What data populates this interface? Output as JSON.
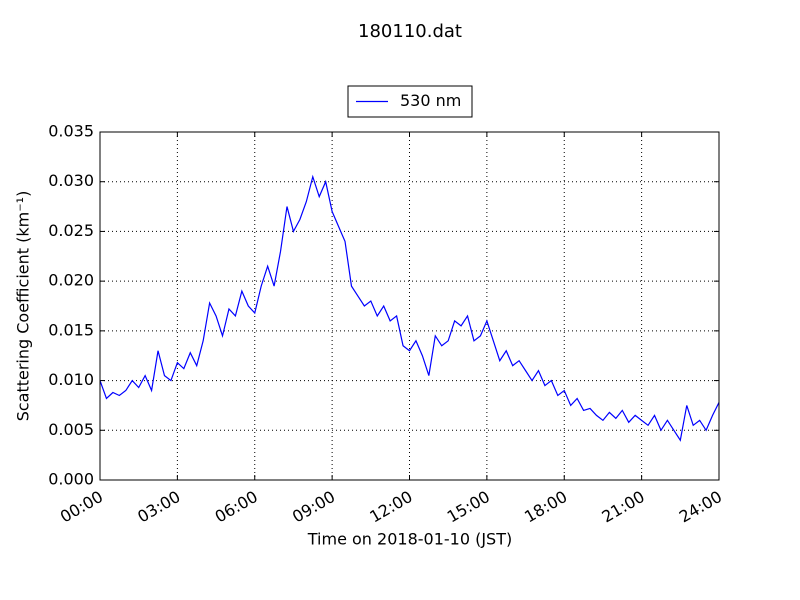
{
  "chart_data": {
    "type": "line",
    "title": "180110.dat",
    "xlabel": "Time on 2018-01-10 (JST)",
    "ylabel": "Scattering Coefficient (km⁻¹)",
    "x": [
      0,
      0.25,
      0.5,
      0.75,
      1,
      1.25,
      1.5,
      1.75,
      2,
      2.25,
      2.5,
      2.75,
      3,
      3.25,
      3.5,
      3.75,
      4,
      4.25,
      4.5,
      4.75,
      5,
      5.25,
      5.5,
      5.75,
      6,
      6.25,
      6.5,
      6.75,
      7,
      7.25,
      7.5,
      7.75,
      8,
      8.25,
      8.5,
      8.75,
      9,
      9.25,
      9.5,
      9.75,
      10,
      10.25,
      10.5,
      10.75,
      11,
      11.25,
      11.5,
      11.75,
      12,
      12.25,
      12.5,
      12.75,
      13,
      13.25,
      13.5,
      13.75,
      14,
      14.25,
      14.5,
      14.75,
      15,
      15.25,
      15.5,
      15.75,
      16,
      16.25,
      16.5,
      16.75,
      17,
      17.25,
      17.5,
      17.75,
      18,
      18.25,
      18.5,
      18.75,
      19,
      19.25,
      19.5,
      19.75,
      20,
      20.25,
      20.5,
      20.75,
      21,
      21.25,
      21.5,
      21.75,
      22,
      22.25,
      22.5,
      22.75,
      23,
      23.25,
      23.5,
      23.75,
      24
    ],
    "series": [
      {
        "name": "530 nm",
        "color": "#0000ff",
        "values": [
          0.01,
          0.0082,
          0.0088,
          0.0085,
          0.009,
          0.01,
          0.0093,
          0.0105,
          0.009,
          0.013,
          0.0105,
          0.01,
          0.0118,
          0.0112,
          0.0128,
          0.0115,
          0.014,
          0.0178,
          0.0165,
          0.0145,
          0.0172,
          0.0165,
          0.019,
          0.0175,
          0.0168,
          0.0195,
          0.0215,
          0.0195,
          0.023,
          0.0275,
          0.025,
          0.0262,
          0.028,
          0.0305,
          0.0285,
          0.03,
          0.027,
          0.0255,
          0.024,
          0.0195,
          0.0185,
          0.0175,
          0.018,
          0.0165,
          0.0175,
          0.016,
          0.0165,
          0.0135,
          0.013,
          0.014,
          0.0125,
          0.0105,
          0.0145,
          0.0135,
          0.014,
          0.016,
          0.0155,
          0.0165,
          0.014,
          0.0145,
          0.016,
          0.014,
          0.012,
          0.013,
          0.0115,
          0.012,
          0.011,
          0.01,
          0.011,
          0.0095,
          0.01,
          0.0085,
          0.009,
          0.0075,
          0.0082,
          0.007,
          0.0072,
          0.0065,
          0.006,
          0.0068,
          0.0062,
          0.007,
          0.0058,
          0.0065,
          0.006,
          0.0055,
          0.0065,
          0.005,
          0.006,
          0.005,
          0.004,
          0.0075,
          0.0055,
          0.006,
          0.005,
          0.0065,
          0.0078
        ]
      }
    ],
    "xlim": [
      0,
      24
    ],
    "xticks": [
      {
        "value": 0,
        "label": "00:00"
      },
      {
        "value": 3,
        "label": "03:00"
      },
      {
        "value": 6,
        "label": "06:00"
      },
      {
        "value": 9,
        "label": "09:00"
      },
      {
        "value": 12,
        "label": "12:00"
      },
      {
        "value": 15,
        "label": "15:00"
      },
      {
        "value": 18,
        "label": "18:00"
      },
      {
        "value": 21,
        "label": "21:00"
      },
      {
        "value": 24,
        "label": "24:00"
      }
    ],
    "ylim": [
      0,
      0.035
    ],
    "yticks": [
      {
        "value": 0,
        "label": "0.000"
      },
      {
        "value": 0.005,
        "label": "0.005"
      },
      {
        "value": 0.01,
        "label": "0.010"
      },
      {
        "value": 0.015,
        "label": "0.015"
      },
      {
        "value": 0.02,
        "label": "0.020"
      },
      {
        "value": 0.025,
        "label": "0.025"
      },
      {
        "value": 0.03,
        "label": "0.030"
      },
      {
        "value": 0.035,
        "label": "0.035"
      }
    ],
    "grid": true,
    "legend": "upper center"
  }
}
